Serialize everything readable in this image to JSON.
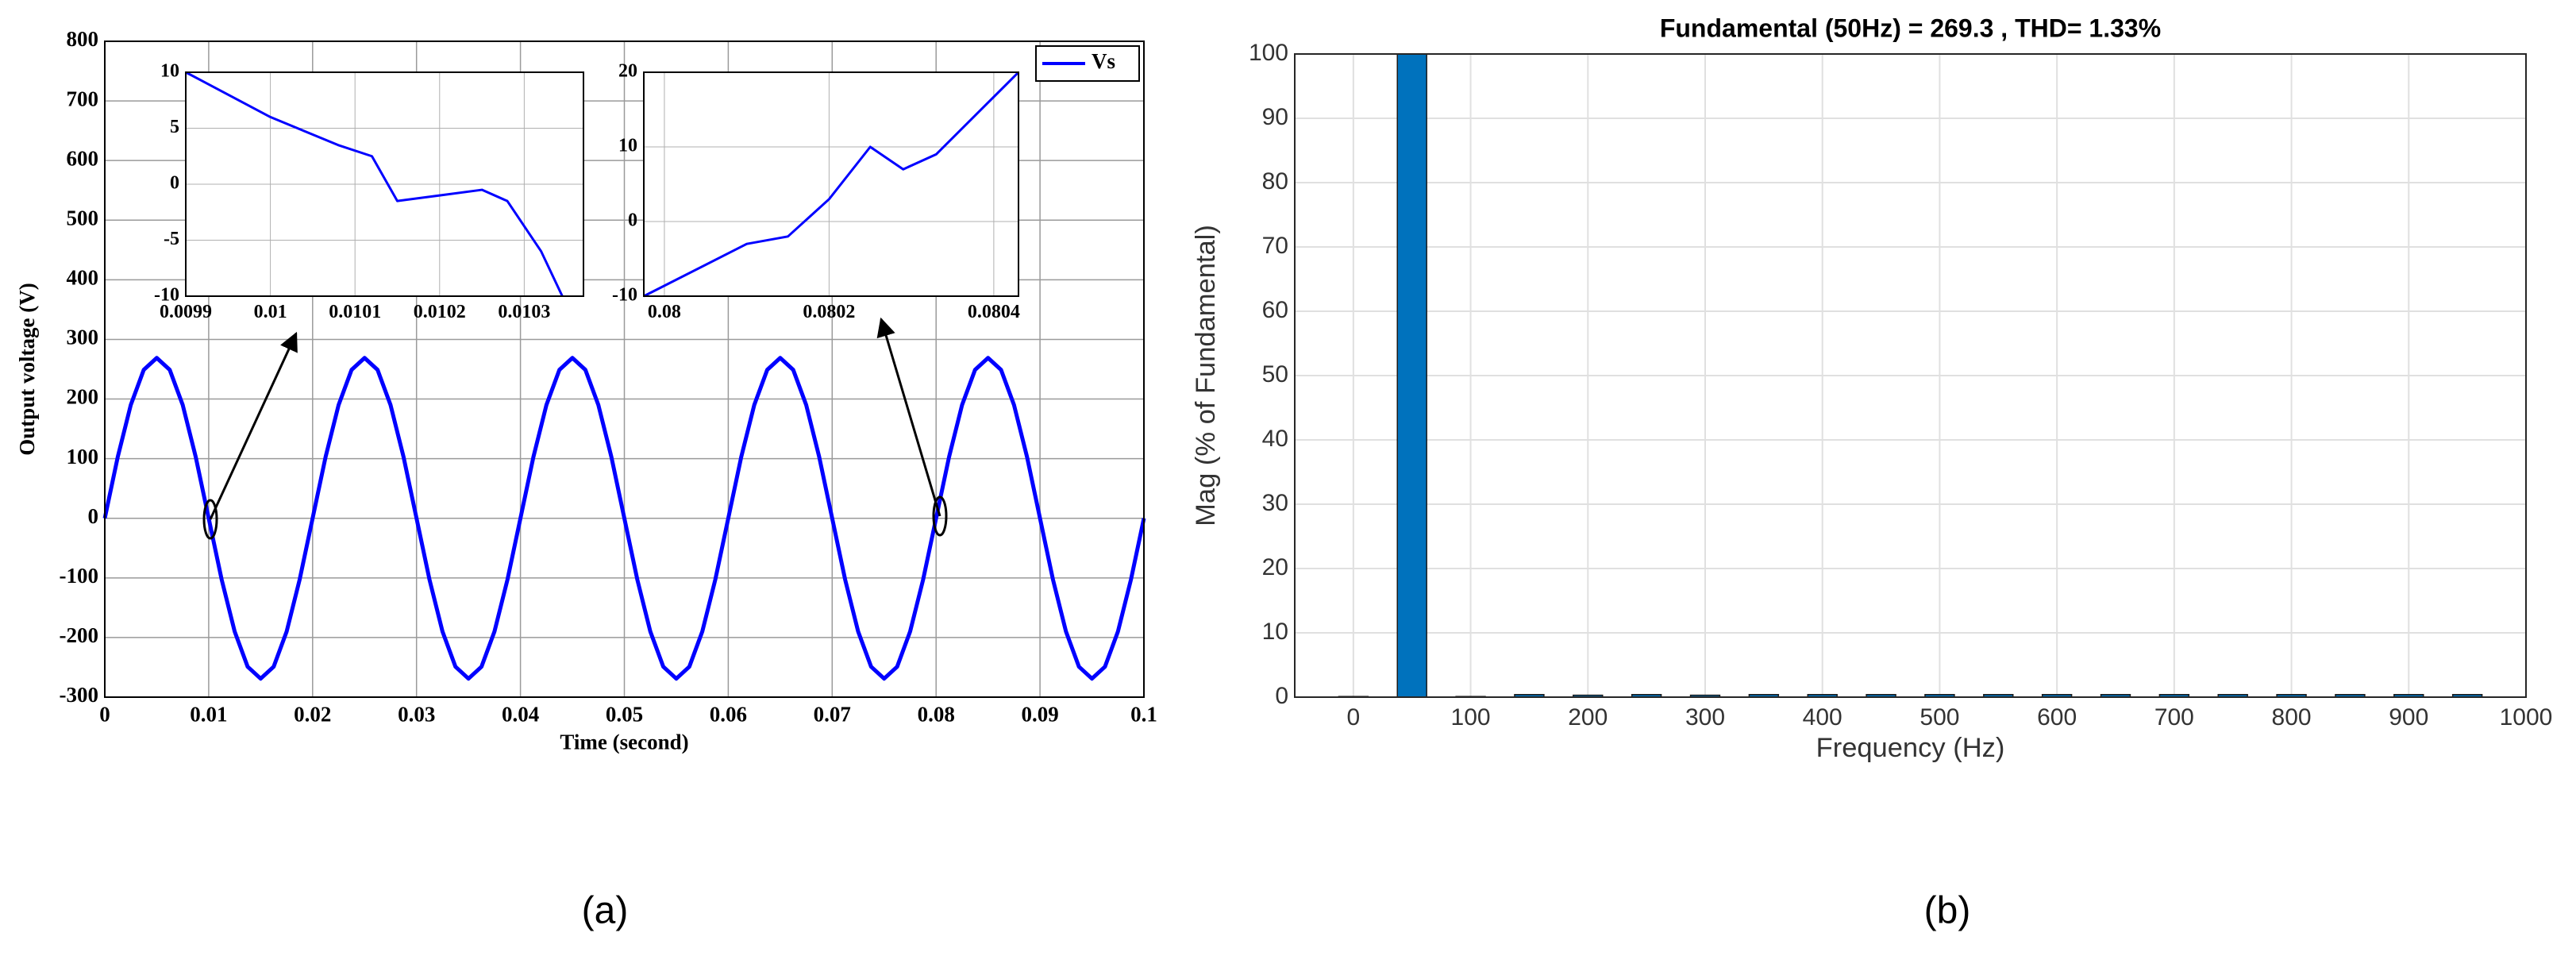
{
  "panel_labels": [
    "(a)",
    "(b)"
  ],
  "chart_data": [
    {
      "type": "line",
      "xlabel": "Time (second)",
      "ylabel": "Output voltage (V)",
      "x": [
        0,
        0.00125,
        0.0025,
        0.00375,
        0.005,
        0.00625,
        0.0075,
        0.00875,
        0.01,
        0.01125,
        0.0125,
        0.01375,
        0.015,
        0.01625,
        0.0175,
        0.01875,
        0.02,
        0.02125,
        0.0225,
        0.02375,
        0.025,
        0.02625,
        0.0275,
        0.02875,
        0.03,
        0.03125,
        0.0325,
        0.03375,
        0.035,
        0.03625,
        0.0375,
        0.03875,
        0.04,
        0.04125,
        0.0425,
        0.04375,
        0.045,
        0.04625,
        0.0475,
        0.04875,
        0.05,
        0.05125,
        0.0525,
        0.05375,
        0.055,
        0.05625,
        0.0575,
        0.05875,
        0.06,
        0.06125,
        0.0625,
        0.06375,
        0.065,
        0.06625,
        0.0675,
        0.06875,
        0.07,
        0.07125,
        0.0725,
        0.07375,
        0.075,
        0.07625,
        0.0775,
        0.07875,
        0.08,
        0.08125,
        0.0825,
        0.08375,
        0.085,
        0.08625,
        0.0875,
        0.08875,
        0.09,
        0.09125,
        0.0925,
        0.09375,
        0.095,
        0.09625,
        0.0975,
        0.09875,
        0.1
      ],
      "series": [
        {
          "name": "Vs",
          "color": "#0000ff",
          "values": [
            0,
            103,
            190,
            249,
            269,
            249,
            190,
            103,
            0,
            -103,
            -190,
            -249,
            -269,
            -249,
            -190,
            -103,
            0,
            103,
            190,
            249,
            269,
            249,
            190,
            103,
            0,
            -103,
            -190,
            -249,
            -269,
            -249,
            -190,
            -103,
            0,
            103,
            190,
            249,
            269,
            249,
            190,
            103,
            0,
            -103,
            -190,
            -249,
            -269,
            -249,
            -190,
            -103,
            0,
            103,
            190,
            249,
            269,
            249,
            190,
            103,
            0,
            -103,
            -190,
            -249,
            -269,
            -249,
            -190,
            -103,
            0,
            103,
            190,
            249,
            269,
            249,
            190,
            103,
            0,
            -103,
            -190,
            -249,
            -269,
            -249,
            -190,
            -103,
            0
          ]
        }
      ],
      "xlim": [
        0,
        0.1
      ],
      "ylim": [
        -300,
        800
      ],
      "xticks": [
        0,
        0.01,
        0.02,
        0.03,
        0.04,
        0.05,
        0.06,
        0.07,
        0.08,
        0.09,
        0.1
      ],
      "yticks": [
        -300,
        -200,
        -100,
        0,
        100,
        200,
        300,
        400,
        500,
        600,
        700,
        800
      ],
      "grid": true,
      "legend": "upper right"
    },
    {
      "type": "line",
      "x": [
        0.0099,
        0.01,
        0.01008,
        0.01012,
        0.01015,
        0.0102,
        0.01025,
        0.01028,
        0.01032,
        0.010345
      ],
      "series": [
        {
          "color": "#0000ff",
          "values": [
            10,
            6,
            3.5,
            2.5,
            -1.5,
            -1,
            -0.5,
            -1.5,
            -6,
            -10
          ]
        }
      ],
      "xlim": [
        0.0099,
        0.01037
      ],
      "ylim": [
        -10,
        10
      ],
      "xticks": [
        0.0099,
        0.01,
        0.0101,
        0.0102,
        0.0103
      ],
      "yticks": [
        -10,
        -5,
        0,
        5,
        10
      ],
      "grid": true
    },
    {
      "type": "line",
      "x": [
        0.079975,
        0.0801,
        0.08015,
        0.0802,
        0.08025,
        0.08029,
        0.08033,
        0.08043
      ],
      "series": [
        {
          "color": "#0000ff",
          "values": [
            -10,
            -3,
            -2,
            3,
            10,
            7,
            9,
            20
          ]
        }
      ],
      "xlim": [
        0.079975,
        0.08043
      ],
      "ylim": [
        -10,
        20
      ],
      "xticks": [
        0.08,
        0.0802,
        0.0804
      ],
      "yticks": [
        -10,
        0,
        10,
        20
      ],
      "grid": true
    },
    {
      "type": "bar",
      "title": "Fundamental (50Hz) = 269.3 , THD= 1.33%",
      "xlabel": "Frequency (Hz)",
      "ylabel": "Mag (% of Fundamental)",
      "x": [
        0,
        50,
        100,
        150,
        200,
        250,
        300,
        350,
        400,
        450,
        500,
        550,
        600,
        650,
        700,
        750,
        800,
        850,
        900,
        950
      ],
      "values": [
        0.1,
        100,
        0.1,
        0.4,
        0.3,
        0.4,
        0.3,
        0.4,
        0.4,
        0.4,
        0.4,
        0.4,
        0.4,
        0.4,
        0.4,
        0.4,
        0.4,
        0.4,
        0.4,
        0.4
      ],
      "color": "#0072bd",
      "xlim": [
        -50,
        1000
      ],
      "ylim": [
        0,
        100
      ],
      "xticks": [
        0,
        100,
        200,
        300,
        400,
        500,
        600,
        700,
        800,
        900,
        1000
      ],
      "yticks": [
        0,
        10,
        20,
        30,
        40,
        50,
        60,
        70,
        80,
        90,
        100
      ],
      "grid": true
    }
  ]
}
